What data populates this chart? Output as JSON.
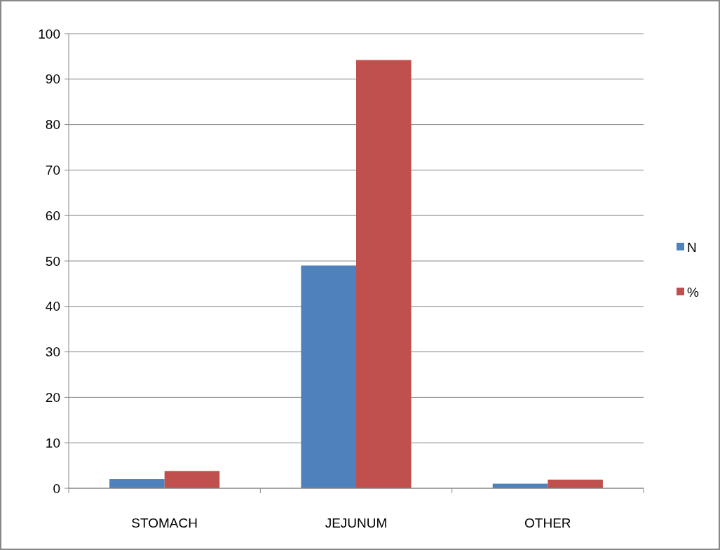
{
  "chart_data": {
    "type": "bar",
    "categories": [
      "STOMACH",
      "JEJUNUM",
      "OTHER"
    ],
    "series": [
      {
        "name": "N",
        "color": "#4f81bd",
        "values": [
          2,
          49,
          1
        ]
      },
      {
        "name": "%",
        "color": "#c0504d",
        "values": [
          3.8,
          94.2,
          1.9
        ]
      }
    ],
    "ylim": [
      0,
      100
    ],
    "yticks": [
      0,
      10,
      20,
      30,
      40,
      50,
      60,
      70,
      80,
      90,
      100
    ],
    "grid": "y",
    "legend": "right"
  }
}
